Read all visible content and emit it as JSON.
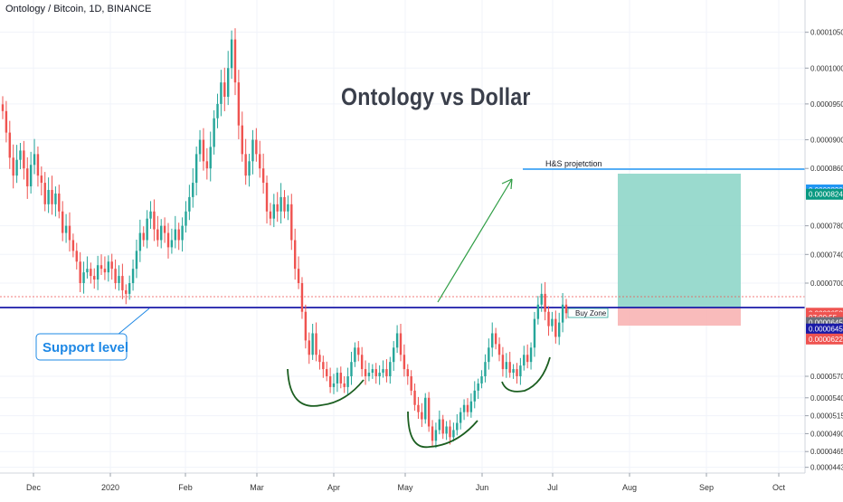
{
  "header": {
    "pair_title": "Ontology / Bitcoin, 1D, BINANCE",
    "main_title": "Ontology vs Dollar"
  },
  "annotations": {
    "projection_label": "H&S projetction",
    "buy_zone_label": "Buy Zone",
    "support_label": "Support level"
  },
  "colors": {
    "up": "#26a69a",
    "down": "#ef5350",
    "support": "#1a1aa8",
    "target_line": "#2196f3",
    "arrow": "#2e9d44",
    "pattern_curve": "#1b5e20",
    "profit_zone": "#8fd6c9",
    "loss_zone": "#f8b4b4",
    "callout": "#1e88e5"
  },
  "chart_data": {
    "type": "candlestick",
    "title": "Ontology vs Dollar",
    "symbol": "Ontology / Bitcoin, 1D, BINANCE",
    "x_ticks": [
      "Dec",
      "2020",
      "Feb",
      "Mar",
      "Apr",
      "May",
      "Jun",
      "Jul",
      "Aug",
      "Sep",
      "Oct"
    ],
    "y_ticks": [
      "0.0001050",
      "0.0001000",
      "0.0000950",
      "0.0000900",
      "0.0000860",
      "0.0000780",
      "0.0000740",
      "0.0000700",
      "0.0000570",
      "0.0000540",
      "0.0000515",
      "0.0000490",
      "0.0000465",
      "0.0000443"
    ],
    "ylim": [
      4.35e-05,
      0.0001095
    ],
    "price_badges": [
      {
        "label": "0.0000830",
        "value": 8.3e-05,
        "color": "#2196f3"
      },
      {
        "label": "0.0000824",
        "value": 8.24e-05,
        "color": "#089981"
      },
      {
        "label": "0.0000658",
        "value": 6.58e-05,
        "color": "#ef5350"
      },
      {
        "label": "07:00:55",
        "value": 6.52e-05,
        "color": "#ef5350",
        "style": "countdown"
      },
      {
        "label": "0.0000645",
        "value": 6.45e-05,
        "color": "#6b6f7a"
      },
      {
        "label": "0.0000645",
        "value": 6.36e-05,
        "color": "#1a1aa8"
      },
      {
        "label": "0.0000622",
        "value": 6.22e-05,
        "color": "#ef5350"
      }
    ],
    "support_level": 6.48e-05,
    "target_level": 8.3e-05,
    "last_close": 6.58e-05,
    "closes": [
      9.4e-05,
      9.1e-05,
      8.75e-05,
      8.5e-05,
      8.72e-05,
      8.85e-05,
      8.6e-05,
      8.35e-05,
      8.65e-05,
      8.8e-05,
      8.5e-05,
      8.4e-05,
      8.1e-05,
      8.3e-05,
      8.1e-05,
      8.25e-05,
      8e-05,
      7.7e-05,
      7.8e-05,
      7.6e-05,
      7.45e-05,
      7.3e-05,
      7e-05,
      7.15e-05,
      7.2e-05,
      7.1e-05,
      7.05e-05,
      7.25e-05,
      7.2e-05,
      7.15e-05,
      7.3e-05,
      7.2e-05,
      7e-05,
      7.1e-05,
      6.9e-05,
      6.85e-05,
      7e-05,
      7.2e-05,
      7.45e-05,
      7.7e-05,
      7.6e-05,
      7.9e-05,
      8e-05,
      7.75e-05,
      7.6e-05,
      7.8e-05,
      7.7e-05,
      7.5e-05,
      7.6e-05,
      7.75e-05,
      7.6e-05,
      7.8e-05,
      8e-05,
      8.2e-05,
      8.4e-05,
      8.8e-05,
      9e-05,
      8.7e-05,
      8.6e-05,
      8.9e-05,
      9.3e-05,
      9.5e-05,
      9.8e-05,
      9.6e-05,
      0.0001,
      0.000104,
      9.8e-05,
      9.2e-05,
      8.8e-05,
      8.5e-05,
      8.7e-05,
      9e-05,
      8.8e-05,
      8.6e-05,
      8.4e-05,
      8e-05,
      7.9e-05,
      8.1e-05,
      8e-05,
      8.2e-05,
      8e-05,
      8.1e-05,
      7.6e-05,
      7.2e-05,
      7e-05,
      6.6e-05,
      6.2e-05,
      6e-05,
      6.3e-05,
      6e-05,
      5.9e-05,
      5.8e-05,
      5.7e-05,
      5.55e-05,
      5.6e-05,
      5.75e-05,
      5.6e-05,
      5.55e-05,
      5.7e-05,
      5.9e-05,
      6.1e-05,
      6e-05,
      5.8e-05,
      5.7e-05,
      5.75e-05,
      5.8e-05,
      5.7e-05,
      5.75e-05,
      5.8e-05,
      5.7e-05,
      5.9e-05,
      6.1e-05,
      6.3e-05,
      6e-05,
      5.8e-05,
      5.7e-05,
      5.5e-05,
      5.3e-05,
      5.2e-05,
      5.1e-05,
      5.4e-05,
      5e-05,
      4.8e-05,
      4.95e-05,
      5.1e-05,
      4.9e-05,
      5e-05,
      4.85e-05,
      4.95e-05,
      5.05e-05,
      5.2e-05,
      5.3e-05,
      5.2e-05,
      5.35e-05,
      5.5e-05,
      5.6e-05,
      5.7e-05,
      5.9e-05,
      6.1e-05,
      6.3e-05,
      6.15e-05,
      6e-05,
      5.8e-05,
      5.9e-05,
      5.75e-05,
      5.8e-05,
      5.7e-05,
      5.85e-05,
      6e-05,
      5.9e-05,
      6.1e-05,
      6.5e-05,
      6.7e-05,
      6.85e-05,
      6.6e-05,
      6.4e-05,
      6.5e-05,
      6.25e-05,
      6.45e-05,
      6.7e-05,
      6.58e-05
    ]
  }
}
